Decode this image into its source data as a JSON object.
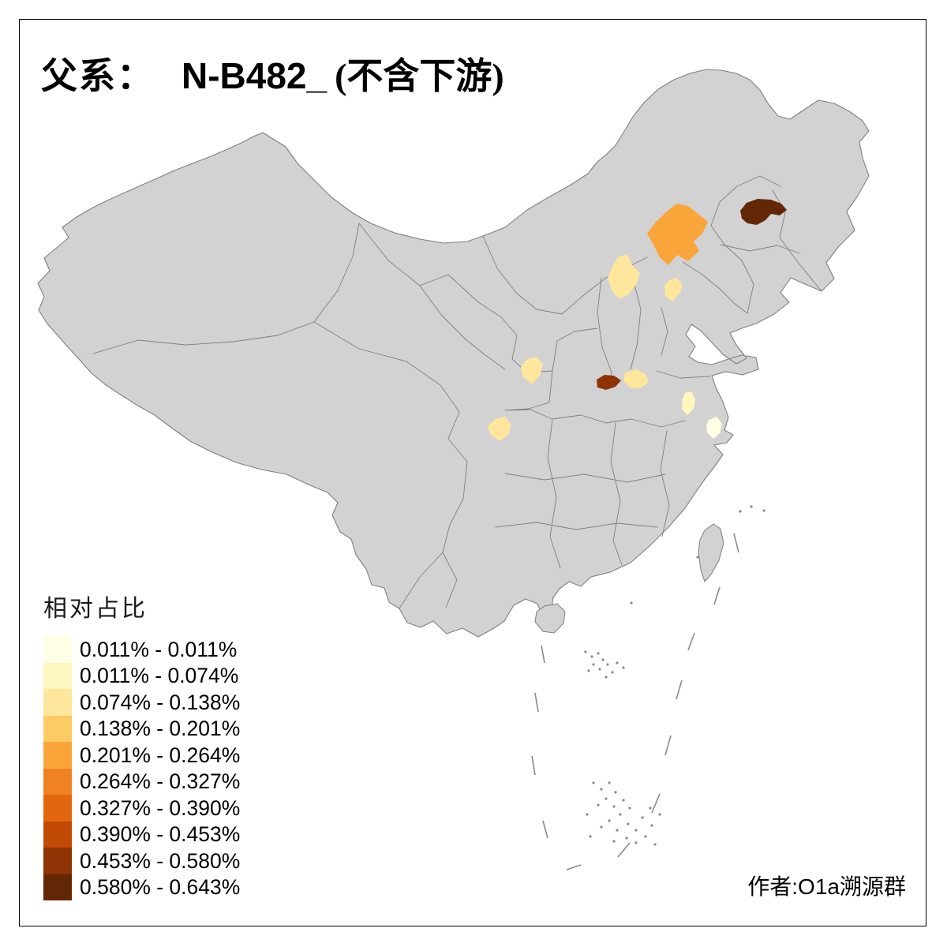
{
  "title": {
    "prefix": "父系：",
    "code": "N-B482_",
    "suffix": "(不含下游)"
  },
  "legend": {
    "title": "相对占比",
    "items": [
      {
        "label": "0.011% - 0.011%",
        "color": "#FFFFE5"
      },
      {
        "label": "0.011% - 0.074%",
        "color": "#FFF7C0"
      },
      {
        "label": "0.074% - 0.138%",
        "color": "#FEE79C"
      },
      {
        "label": "0.138% - 0.201%",
        "color": "#FDCB63"
      },
      {
        "label": "0.201% - 0.264%",
        "color": "#FAA53A"
      },
      {
        "label": "0.264% - 0.327%",
        "color": "#F08223"
      },
      {
        "label": "0.327% - 0.390%",
        "color": "#E2660D"
      },
      {
        "label": "0.390% - 0.453%",
        "color": "#C14A05"
      },
      {
        "label": "0.453% - 0.580%",
        "color": "#8E3304"
      },
      {
        "label": "0.580% - 0.643%",
        "color": "#632706"
      }
    ]
  },
  "attribution": "作者:O1a溯源群",
  "map": {
    "land_fill": "#D2D2D2",
    "border_color": "#7F7F7F",
    "sea_color": "#FFFFFF",
    "regions": [
      {
        "id": "heilongjiang-region",
        "category": "0.580% - 0.643%",
        "color": "#632706"
      },
      {
        "id": "inner-mongolia-region",
        "category": "0.201% - 0.264%",
        "color": "#FAA53A"
      },
      {
        "id": "north-hebei-region",
        "category": "0.074% - 0.138%",
        "color": "#FEE79C"
      },
      {
        "id": "northeast-hebei-region",
        "category": "0.074% - 0.138%",
        "color": "#FEE79C"
      },
      {
        "id": "north-shaanxi-region",
        "category": "0.074% - 0.138%",
        "color": "#FEE79C"
      },
      {
        "id": "west-henan-region",
        "category": "0.453% - 0.580%",
        "color": "#8E3304"
      },
      {
        "id": "central-henan-region",
        "category": "0.074% - 0.138%",
        "color": "#FEE79C"
      },
      {
        "id": "central-jiangsu-region",
        "category": "0.011% - 0.074%",
        "color": "#FFF7C0"
      },
      {
        "id": "central-sichuan-region",
        "category": "0.074% - 0.138%",
        "color": "#FEE79C"
      },
      {
        "id": "south-jiangsu-region",
        "category": "0.011% - 0.011%",
        "color": "#FFFFE5"
      }
    ]
  }
}
